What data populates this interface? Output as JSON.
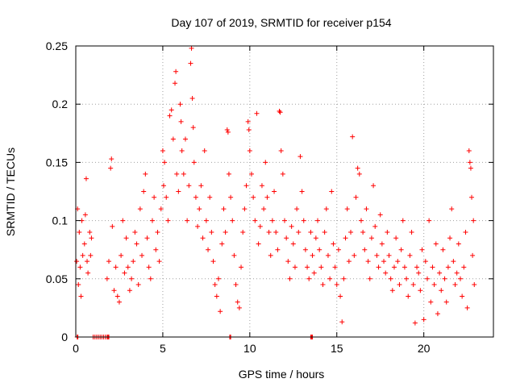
{
  "chart_data": {
    "type": "scatter",
    "title": "Day 107 of 2019, SRMTID for receiver p154",
    "xlabel": "GPS time / hours",
    "ylabel": "SRMTID / TECUs",
    "xlim": [
      0,
      24
    ],
    "ylim": [
      0,
      0.25
    ],
    "xticks": [
      0,
      5,
      10,
      15,
      20
    ],
    "xtick_labels": [
      "0",
      "5",
      "10",
      "15",
      "20"
    ],
    "yticks": [
      0,
      0.05,
      0.1,
      0.15,
      0.2,
      0.25
    ],
    "ytick_labels": [
      "0",
      "0.05",
      "0.1",
      "0.15",
      "0.2",
      "0.25"
    ],
    "grid": true,
    "marker": "plus",
    "color": "#ff0000",
    "series": [
      {
        "name": "SRMTID",
        "points": [
          [
            0.05,
            0.065
          ],
          [
            0.1,
            0.11
          ],
          [
            0.15,
            0.045
          ],
          [
            0.2,
            0.09
          ],
          [
            0.25,
            0.06
          ],
          [
            0.3,
            0.035
          ],
          [
            0.35,
            0.1
          ],
          [
            0.4,
            0.07
          ],
          [
            0.5,
            0.08
          ],
          [
            0.55,
            0.105
          ],
          [
            0.6,
            0.136
          ],
          [
            0.65,
            0.065
          ],
          [
            0.7,
            0.055
          ],
          [
            0.8,
            0.09
          ],
          [
            0.85,
            0.07
          ],
          [
            0.9,
            0.085
          ],
          [
            1.8,
            0.05
          ],
          [
            1.9,
            0.065
          ],
          [
            2.0,
            0.145
          ],
          [
            2.05,
            0.153
          ],
          [
            2.1,
            0.095
          ],
          [
            2.2,
            0.04
          ],
          [
            2.3,
            0.06
          ],
          [
            2.4,
            0.035
          ],
          [
            2.5,
            0.03
          ],
          [
            2.6,
            0.07
          ],
          [
            2.7,
            0.1
          ],
          [
            2.8,
            0.055
          ],
          [
            2.9,
            0.085
          ],
          [
            3.0,
            0.06
          ],
          [
            3.1,
            0.04
          ],
          [
            3.2,
            0.05
          ],
          [
            3.3,
            0.065
          ],
          [
            3.4,
            0.09
          ],
          [
            3.5,
            0.08
          ],
          [
            3.6,
            0.045
          ],
          [
            3.7,
            0.11
          ],
          [
            3.8,
            0.07
          ],
          [
            3.9,
            0.125
          ],
          [
            4.0,
            0.14
          ],
          [
            4.1,
            0.085
          ],
          [
            4.2,
            0.06
          ],
          [
            4.3,
            0.05
          ],
          [
            4.4,
            0.1
          ],
          [
            4.5,
            0.12
          ],
          [
            4.6,
            0.075
          ],
          [
            4.7,
            0.09
          ],
          [
            4.8,
            0.065
          ],
          [
            4.9,
            0.11
          ],
          [
            5.0,
            0.16
          ],
          [
            5.05,
            0.13
          ],
          [
            5.1,
            0.15
          ],
          [
            5.2,
            0.12
          ],
          [
            5.3,
            0.1
          ],
          [
            5.4,
            0.19
          ],
          [
            5.5,
            0.195
          ],
          [
            5.6,
            0.17
          ],
          [
            5.7,
            0.218
          ],
          [
            5.75,
            0.228
          ],
          [
            5.8,
            0.14
          ],
          [
            5.9,
            0.125
          ],
          [
            6.0,
            0.2
          ],
          [
            6.05,
            0.185
          ],
          [
            6.1,
            0.16
          ],
          [
            6.2,
            0.14
          ],
          [
            6.3,
            0.17
          ],
          [
            6.4,
            0.1
          ],
          [
            6.5,
            0.13
          ],
          [
            6.6,
            0.235
          ],
          [
            6.65,
            0.248
          ],
          [
            6.7,
            0.205
          ],
          [
            6.75,
            0.18
          ],
          [
            6.8,
            0.15
          ],
          [
            6.9,
            0.12
          ],
          [
            7.0,
            0.095
          ],
          [
            7.1,
            0.11
          ],
          [
            7.2,
            0.13
          ],
          [
            7.3,
            0.085
          ],
          [
            7.4,
            0.16
          ],
          [
            7.5,
            0.1
          ],
          [
            7.6,
            0.075
          ],
          [
            7.7,
            0.12
          ],
          [
            7.8,
            0.09
          ],
          [
            7.9,
            0.065
          ],
          [
            8.0,
            0.045
          ],
          [
            8.1,
            0.035
          ],
          [
            8.2,
            0.05
          ],
          [
            8.3,
            0.022
          ],
          [
            8.4,
            0.08
          ],
          [
            8.5,
            0.11
          ],
          [
            8.6,
            0.09
          ],
          [
            8.7,
            0.178
          ],
          [
            8.75,
            0.176
          ],
          [
            8.8,
            0.14
          ],
          [
            8.9,
            0.12
          ],
          [
            9.0,
            0.1
          ],
          [
            9.1,
            0.07
          ],
          [
            9.2,
            0.045
          ],
          [
            9.3,
            0.03
          ],
          [
            9.4,
            0.025
          ],
          [
            9.5,
            0.06
          ],
          [
            9.6,
            0.09
          ],
          [
            9.7,
            0.11
          ],
          [
            9.8,
            0.13
          ],
          [
            9.9,
            0.185
          ],
          [
            9.95,
            0.178
          ],
          [
            10.0,
            0.16
          ],
          [
            10.1,
            0.14
          ],
          [
            10.2,
            0.12
          ],
          [
            10.3,
            0.1
          ],
          [
            10.4,
            0.192
          ],
          [
            10.5,
            0.08
          ],
          [
            10.6,
            0.095
          ],
          [
            10.7,
            0.13
          ],
          [
            10.8,
            0.11
          ],
          [
            10.9,
            0.15
          ],
          [
            11.0,
            0.12
          ],
          [
            11.1,
            0.09
          ],
          [
            11.2,
            0.07
          ],
          [
            11.3,
            0.1
          ],
          [
            11.4,
            0.125
          ],
          [
            11.5,
            0.09
          ],
          [
            11.6,
            0.075
          ],
          [
            11.7,
            0.194
          ],
          [
            11.75,
            0.193
          ],
          [
            11.8,
            0.16
          ],
          [
            11.9,
            0.14
          ],
          [
            12.0,
            0.1
          ],
          [
            12.1,
            0.085
          ],
          [
            12.2,
            0.065
          ],
          [
            12.3,
            0.05
          ],
          [
            12.4,
            0.095
          ],
          [
            12.5,
            0.08
          ],
          [
            12.6,
            0.06
          ],
          [
            12.7,
            0.11
          ],
          [
            12.8,
            0.09
          ],
          [
            12.9,
            0.155
          ],
          [
            13.0,
            0.125
          ],
          [
            13.1,
            0.1
          ],
          [
            13.2,
            0.075
          ],
          [
            13.3,
            0.06
          ],
          [
            13.4,
            0.05
          ],
          [
            13.5,
            0.09
          ],
          [
            13.6,
            0.07
          ],
          [
            13.7,
            0.055
          ],
          [
            13.8,
            0.085
          ],
          [
            13.9,
            0.1
          ],
          [
            14.0,
            0.075
          ],
          [
            14.1,
            0.06
          ],
          [
            14.2,
            0.045
          ],
          [
            14.3,
            0.09
          ],
          [
            14.4,
            0.11
          ],
          [
            14.5,
            0.07
          ],
          [
            14.6,
            0.05
          ],
          [
            14.7,
            0.125
          ],
          [
            14.8,
            0.08
          ],
          [
            14.9,
            0.06
          ],
          [
            15.0,
            0.045
          ],
          [
            15.1,
            0.075
          ],
          [
            15.2,
            0.035
          ],
          [
            15.3,
            0.013
          ],
          [
            15.4,
            0.05
          ],
          [
            15.5,
            0.085
          ],
          [
            15.6,
            0.11
          ],
          [
            15.7,
            0.065
          ],
          [
            15.8,
            0.09
          ],
          [
            15.9,
            0.172
          ],
          [
            16.0,
            0.07
          ],
          [
            16.1,
            0.12
          ],
          [
            16.2,
            0.145
          ],
          [
            16.3,
            0.14
          ],
          [
            16.4,
            0.1
          ],
          [
            16.5,
            0.09
          ],
          [
            16.6,
            0.075
          ],
          [
            16.7,
            0.11
          ],
          [
            16.8,
            0.065
          ],
          [
            16.9,
            0.05
          ],
          [
            17.0,
            0.085
          ],
          [
            17.1,
            0.13
          ],
          [
            17.2,
            0.095
          ],
          [
            17.3,
            0.07
          ],
          [
            17.4,
            0.06
          ],
          [
            17.5,
            0.105
          ],
          [
            17.6,
            0.08
          ],
          [
            17.7,
            0.065
          ],
          [
            17.8,
            0.055
          ],
          [
            17.9,
            0.09
          ],
          [
            18.0,
            0.07
          ],
          [
            18.1,
            0.05
          ],
          [
            18.2,
            0.04
          ],
          [
            18.3,
            0.06
          ],
          [
            18.4,
            0.085
          ],
          [
            18.5,
            0.065
          ],
          [
            18.6,
            0.045
          ],
          [
            18.7,
            0.075
          ],
          [
            18.8,
            0.1
          ],
          [
            18.9,
            0.06
          ],
          [
            19.0,
            0.05
          ],
          [
            19.1,
            0.035
          ],
          [
            19.2,
            0.07
          ],
          [
            19.3,
            0.09
          ],
          [
            19.4,
            0.045
          ],
          [
            19.5,
            0.012
          ],
          [
            19.6,
            0.06
          ],
          [
            19.7,
            0.055
          ],
          [
            19.8,
            0.04
          ],
          [
            19.9,
            0.075
          ],
          [
            20.0,
            0.015
          ],
          [
            20.1,
            0.065
          ],
          [
            20.2,
            0.05
          ],
          [
            20.3,
            0.1
          ],
          [
            20.4,
            0.03
          ],
          [
            20.5,
            0.06
          ],
          [
            20.6,
            0.045
          ],
          [
            20.7,
            0.08
          ],
          [
            20.8,
            0.02
          ],
          [
            20.9,
            0.055
          ],
          [
            21.0,
            0.04
          ],
          [
            21.1,
            0.075
          ],
          [
            21.2,
            0.05
          ],
          [
            21.3,
            0.03
          ],
          [
            21.4,
            0.06
          ],
          [
            21.5,
            0.085
          ],
          [
            21.6,
            0.11
          ],
          [
            21.7,
            0.065
          ],
          [
            21.8,
            0.045
          ],
          [
            21.9,
            0.055
          ],
          [
            22.0,
            0.08
          ],
          [
            22.1,
            0.05
          ],
          [
            22.2,
            0.035
          ],
          [
            22.3,
            0.06
          ],
          [
            22.4,
            0.09
          ],
          [
            22.5,
            0.025
          ],
          [
            22.6,
            0.16
          ],
          [
            22.65,
            0.15
          ],
          [
            22.7,
            0.145
          ],
          [
            22.75,
            0.12
          ],
          [
            22.8,
            0.07
          ],
          [
            22.85,
            0.1
          ],
          [
            22.9,
            0.045
          ],
          [
            0.08,
            0
          ],
          [
            0.12,
            0
          ],
          [
            1.0,
            0
          ],
          [
            1.1,
            0
          ],
          [
            1.2,
            0
          ],
          [
            1.3,
            0
          ],
          [
            1.4,
            0
          ],
          [
            1.5,
            0
          ],
          [
            1.6,
            0
          ],
          [
            1.7,
            0
          ],
          [
            1.8,
            0
          ],
          [
            1.85,
            0
          ],
          [
            1.9,
            0
          ],
          [
            8.85,
            0
          ],
          [
            8.9,
            0
          ],
          [
            13.5,
            0
          ],
          [
            13.55,
            0
          ],
          [
            13.6,
            0
          ]
        ]
      }
    ]
  }
}
